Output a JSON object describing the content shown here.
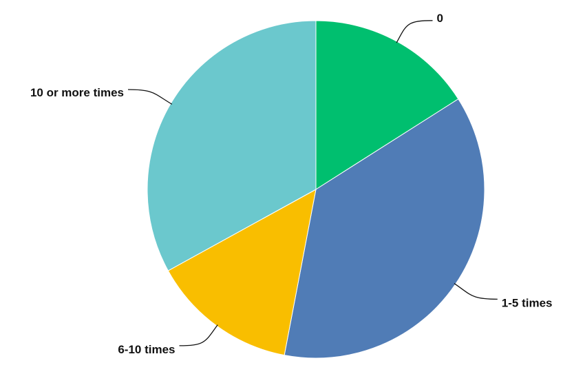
{
  "chart_data": {
    "type": "pie",
    "categories": [
      "0",
      "1-5 times",
      "6-10 times",
      "10 or more times"
    ],
    "values": [
      16,
      37,
      14,
      33
    ],
    "colors": [
      "#00BF6F",
      "#507CB6",
      "#F9BE00",
      "#6BC8CD"
    ],
    "start_angle": "12 o'clock",
    "direction": "clockwise",
    "labels": [
      "0",
      "1-5 times",
      "6-10 times",
      "10 or more times"
    ],
    "title": "",
    "legend": "none"
  }
}
